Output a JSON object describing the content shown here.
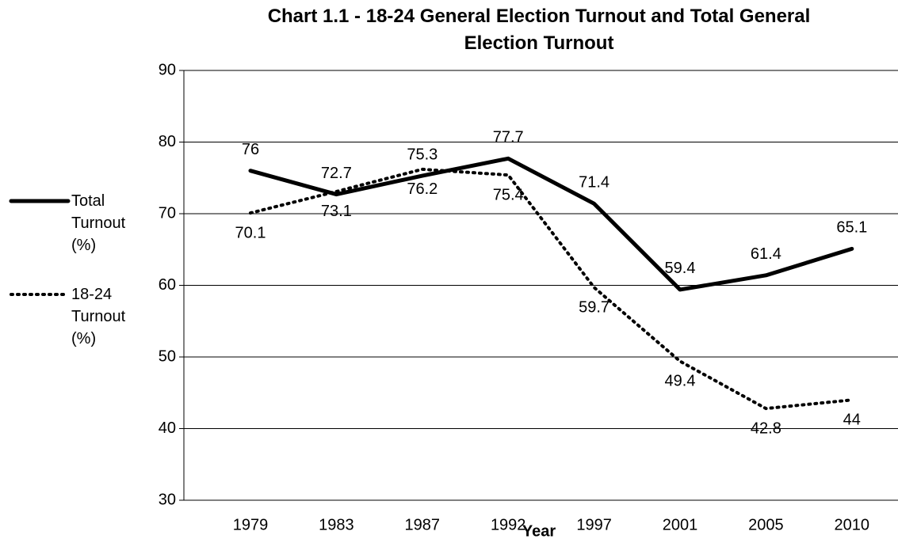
{
  "chart_data": {
    "type": "line",
    "title": "Chart 1.1 - 18-24 General Election Turnout and Total General Election Turnout",
    "x_label": "Year",
    "categories": [
      "1979",
      "1983",
      "1987",
      "1992",
      "1997",
      "2001",
      "2005",
      "2010"
    ],
    "series": [
      {
        "name": "Total Turnout (%)",
        "color": "#000000",
        "dash": "solid",
        "values": [
          76,
          72.7,
          75.3,
          77.7,
          71.4,
          59.4,
          61.4,
          65.1
        ]
      },
      {
        "name": "18-24 Turnout (%)",
        "color": "#000000",
        "dash": "dotted",
        "values": [
          70.1,
          73.1,
          76.2,
          75.4,
          59.7,
          49.4,
          42.8,
          44
        ]
      }
    ],
    "ylim": [
      30,
      90
    ],
    "yticks": [
      30,
      40,
      50,
      60,
      70,
      80,
      90
    ],
    "grid": true,
    "legend": "left"
  }
}
